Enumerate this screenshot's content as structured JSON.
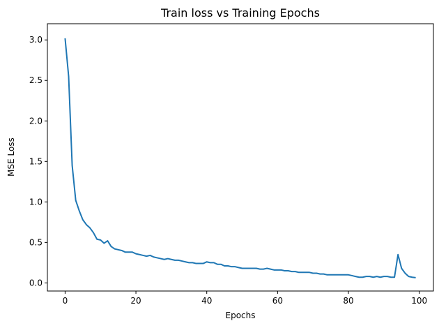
{
  "chart_data": {
    "type": "line",
    "title": "Train loss vs Training Epochs",
    "xlabel": "Epochs",
    "ylabel": "MSE Loss",
    "xlim": [
      -5,
      104
    ],
    "ylim": [
      -0.1,
      3.2
    ],
    "x_ticks": [
      0,
      20,
      40,
      60,
      80,
      100
    ],
    "x_tick_labels": [
      "0",
      "20",
      "40",
      "60",
      "80",
      "100"
    ],
    "y_ticks": [
      0.0,
      0.5,
      1.0,
      1.5,
      2.0,
      2.5,
      3.0
    ],
    "y_tick_labels": [
      "0.0",
      "0.5",
      "1.0",
      "1.5",
      "2.0",
      "2.5",
      "3.0"
    ],
    "grid": false,
    "series": [
      {
        "color": "#1f77b4",
        "x": [
          0,
          1,
          2,
          3,
          4,
          5,
          6,
          7,
          8,
          9,
          10,
          11,
          12,
          13,
          14,
          15,
          16,
          17,
          18,
          19,
          20,
          21,
          22,
          23,
          24,
          25,
          26,
          27,
          28,
          29,
          30,
          31,
          32,
          33,
          34,
          35,
          36,
          37,
          38,
          39,
          40,
          41,
          42,
          43,
          44,
          45,
          46,
          47,
          48,
          49,
          50,
          51,
          52,
          53,
          54,
          55,
          56,
          57,
          58,
          59,
          60,
          61,
          62,
          63,
          64,
          65,
          66,
          67,
          68,
          69,
          70,
          71,
          72,
          73,
          74,
          75,
          76,
          77,
          78,
          79,
          80,
          81,
          82,
          83,
          84,
          85,
          86,
          87,
          88,
          89,
          90,
          91,
          92,
          93,
          94,
          95,
          96,
          97,
          98,
          99
        ],
        "y": [
          3.02,
          2.55,
          1.45,
          1.02,
          0.89,
          0.78,
          0.72,
          0.68,
          0.62,
          0.54,
          0.53,
          0.49,
          0.52,
          0.45,
          0.42,
          0.41,
          0.4,
          0.38,
          0.38,
          0.38,
          0.36,
          0.35,
          0.34,
          0.33,
          0.34,
          0.32,
          0.31,
          0.3,
          0.29,
          0.3,
          0.29,
          0.28,
          0.28,
          0.27,
          0.26,
          0.25,
          0.25,
          0.24,
          0.24,
          0.24,
          0.26,
          0.25,
          0.25,
          0.23,
          0.23,
          0.21,
          0.21,
          0.2,
          0.2,
          0.19,
          0.18,
          0.18,
          0.18,
          0.18,
          0.18,
          0.17,
          0.17,
          0.18,
          0.17,
          0.16,
          0.16,
          0.16,
          0.15,
          0.15,
          0.14,
          0.14,
          0.13,
          0.13,
          0.13,
          0.13,
          0.12,
          0.12,
          0.11,
          0.11,
          0.1,
          0.1,
          0.1,
          0.1,
          0.1,
          0.1,
          0.1,
          0.09,
          0.08,
          0.07,
          0.07,
          0.08,
          0.08,
          0.07,
          0.08,
          0.07,
          0.08,
          0.08,
          0.07,
          0.07,
          0.35,
          0.18,
          0.12,
          0.08,
          0.07,
          0.065
        ]
      }
    ]
  }
}
